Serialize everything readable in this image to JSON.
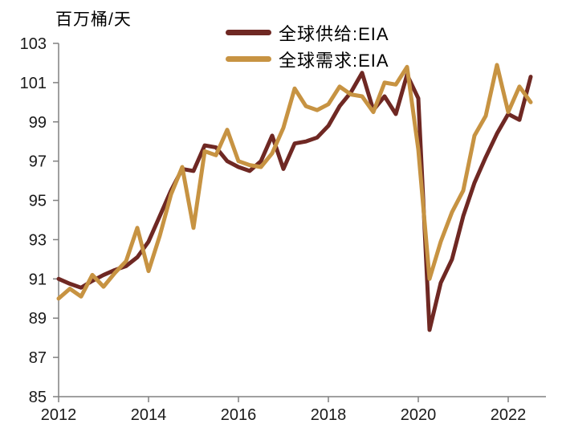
{
  "title": "百万桶/天",
  "legend": {
    "items": [
      {
        "key": "supply",
        "label": "全球供给:EIA",
        "color": "#6f2823"
      },
      {
        "key": "demand",
        "label": "全球需求:EIA",
        "color": "#c79342"
      }
    ]
  },
  "colors": {
    "supply": "#6f2823",
    "demand": "#c79342",
    "axis": "#808080",
    "tick_text": "#1a1a1a",
    "background": "#ffffff"
  },
  "chart_data": {
    "type": "line",
    "title": "",
    "ylabel": "百万桶/天",
    "xlabel": "",
    "ylim": [
      85,
      103
    ],
    "yticks": [
      85,
      87,
      89,
      91,
      93,
      95,
      97,
      99,
      101,
      103
    ],
    "xticks": [
      {
        "label": "2012",
        "year": 2012
      },
      {
        "label": "2014",
        "year": 2014
      },
      {
        "label": "2016",
        "year": 2016
      },
      {
        "label": "2018",
        "year": 2018
      },
      {
        "label": "2020",
        "year": 2020
      },
      {
        "label": "2022",
        "year": 2022
      }
    ],
    "grid": false,
    "legend_position": "top-center",
    "x": [
      "2012Q1",
      "2012Q2",
      "2012Q3",
      "2012Q4",
      "2013Q1",
      "2013Q2",
      "2013Q3",
      "2013Q4",
      "2014Q1",
      "2014Q2",
      "2014Q3",
      "2014Q4",
      "2015Q1",
      "2015Q2",
      "2015Q3",
      "2015Q4",
      "2016Q1",
      "2016Q2",
      "2016Q3",
      "2016Q4",
      "2017Q1",
      "2017Q2",
      "2017Q3",
      "2017Q4",
      "2018Q1",
      "2018Q2",
      "2018Q3",
      "2018Q4",
      "2019Q1",
      "2019Q2",
      "2019Q3",
      "2019Q4",
      "2020Q1",
      "2020Q2",
      "2020Q3",
      "2020Q4",
      "2021Q1",
      "2021Q2",
      "2021Q3",
      "2021Q4",
      "2022Q1",
      "2022Q2",
      "2022Q3"
    ],
    "series": [
      {
        "key": "supply",
        "name": "全球供给:EIA",
        "color": "#6f2823",
        "values": [
          91.0,
          90.75,
          90.55,
          90.9,
          91.2,
          91.45,
          91.65,
          92.1,
          92.9,
          94.2,
          95.5,
          96.6,
          96.5,
          97.8,
          97.7,
          97.0,
          96.7,
          96.5,
          97.0,
          98.3,
          96.6,
          97.9,
          98.0,
          98.2,
          98.8,
          99.8,
          100.5,
          101.5,
          99.6,
          100.3,
          99.4,
          101.4,
          100.2,
          88.4,
          90.8,
          92.0,
          94.2,
          95.9,
          97.2,
          98.4,
          99.4,
          99.1,
          101.3
        ]
      },
      {
        "key": "demand",
        "name": "全球需求:EIA",
        "color": "#c79342",
        "values": [
          90.0,
          90.5,
          90.1,
          91.2,
          90.6,
          91.3,
          91.9,
          93.6,
          91.4,
          93.2,
          95.3,
          96.7,
          93.6,
          97.5,
          97.3,
          98.6,
          97.0,
          96.8,
          96.7,
          97.4,
          98.7,
          100.7,
          99.8,
          99.6,
          99.9,
          100.8,
          100.4,
          100.3,
          99.5,
          101.0,
          100.9,
          101.8,
          97.6,
          91.0,
          92.9,
          94.4,
          95.5,
          98.3,
          99.3,
          101.9,
          99.5,
          100.8,
          100.0
        ]
      }
    ]
  }
}
